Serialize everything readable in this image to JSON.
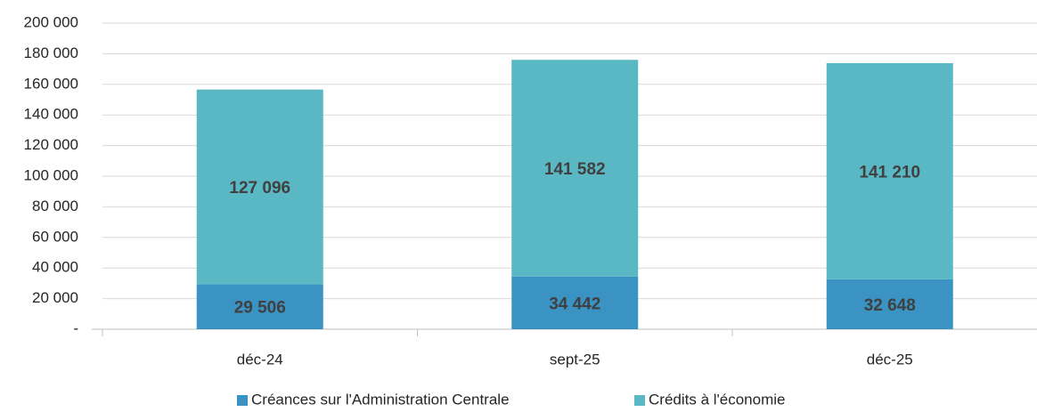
{
  "chart_data": {
    "type": "stacked_bar",
    "categories": [
      "déc-24",
      "sept-25",
      "déc-25"
    ],
    "series": [
      {
        "name": "Créances sur l'Administration Centrale",
        "color": "#3a93c3",
        "values": [
          29506,
          34442,
          32648
        ],
        "value_labels": [
          "29 506",
          "34 442",
          "32 648"
        ]
      },
      {
        "name": "Crédits à l'économie",
        "color": "#5ab7c4",
        "values": [
          127096,
          141582,
          141210
        ],
        "value_labels": [
          "127 096",
          "141 582",
          "141 210"
        ]
      }
    ],
    "ylim": [
      0,
      200000
    ],
    "yticks": [
      {
        "value": 0,
        "label": "-"
      },
      {
        "value": 20000,
        "label": "20 000"
      },
      {
        "value": 40000,
        "label": "40 000"
      },
      {
        "value": 60000,
        "label": "60 000"
      },
      {
        "value": 80000,
        "label": "80 000"
      },
      {
        "value": 100000,
        "label": "100 000"
      },
      {
        "value": 120000,
        "label": "120 000"
      },
      {
        "value": 140000,
        "label": "140 000"
      },
      {
        "value": 160000,
        "label": "160 000"
      },
      {
        "value": 180000,
        "label": "180 000"
      },
      {
        "value": 200000,
        "label": "200 000"
      }
    ],
    "grid": true,
    "legend": "bottom"
  }
}
